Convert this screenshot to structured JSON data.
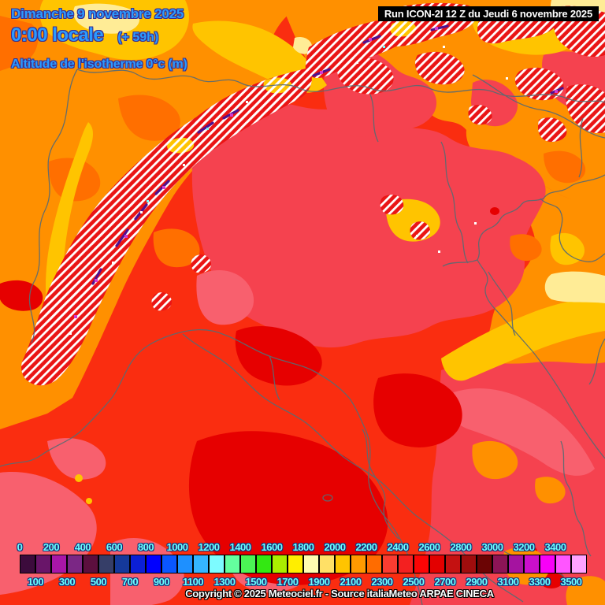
{
  "header": {
    "date": "Dimanche 9 novembre 2025",
    "time": "0:00 locale",
    "offset": "(+ 59h)",
    "parameter": "Altitude de l'isotherme 0°c (m)",
    "run": "Run ICON-2I 12 Z du Jeudi 6 novembre 2025",
    "text_color": "#2b9bff",
    "run_bg": "#000000",
    "run_color": "#ffffff"
  },
  "footer": {
    "copyright": "Copyright © 2025 Meteociel.fr - Source italiaMeteo ARPAE CINECA",
    "color": "#ffffff"
  },
  "legend": {
    "unit": "m",
    "label_color": "#6cffff",
    "top_labels": [
      "0",
      "200",
      "400",
      "600",
      "800",
      "1000",
      "1200",
      "1400",
      "1600",
      "1800",
      "2000",
      "2200",
      "2400",
      "2600",
      "2800",
      "3000",
      "3200",
      "3400"
    ],
    "bottom_labels": [
      "100",
      "300",
      "500",
      "700",
      "900",
      "1100",
      "1300",
      "1500",
      "1700",
      "1900",
      "2100",
      "2300",
      "2500",
      "2700",
      "2900",
      "3100",
      "3300",
      "3500"
    ],
    "cell_colors": [
      "#3c0b3c",
      "#691569",
      "#a816a8",
      "#7b2785",
      "#5c0f3e",
      "#363e68",
      "#15399b",
      "#0b1fd6",
      "#0000ff",
      "#0a57ff",
      "#1e90ff",
      "#35b5ff",
      "#7dfbff",
      "#64ff9e",
      "#4bf455",
      "#33e812",
      "#aaee00",
      "#ffee00",
      "#fffdb0",
      "#ffe066",
      "#ffc400",
      "#ff9a00",
      "#ff6c00",
      "#fa3c31",
      "#f32020",
      "#fb0505",
      "#e30000",
      "#c41111",
      "#a00d0d",
      "#6b0404",
      "#8c1456",
      "#a513a0",
      "#cb0fcb",
      "#f800f8",
      "#ff55ff",
      "#ffa3ff"
    ]
  },
  "map": {
    "palette": {
      "base_red": "#fa2d10",
      "crimson": "#f5424f",
      "pink": "#f8606e",
      "deep_red": "#e60000",
      "orange": "#ff9000",
      "dark_orange": "#ff6f00",
      "gold": "#ffc400",
      "yellow": "#ffd34d",
      "pale_yellow": "#ffec96",
      "hatch_base": "#ea1515",
      "hatch_stripe": "#ffffff",
      "ridge_purple": "#4e1190",
      "ridge_magenta": "#d23ad2",
      "border_line": "#5a6b72"
    }
  }
}
